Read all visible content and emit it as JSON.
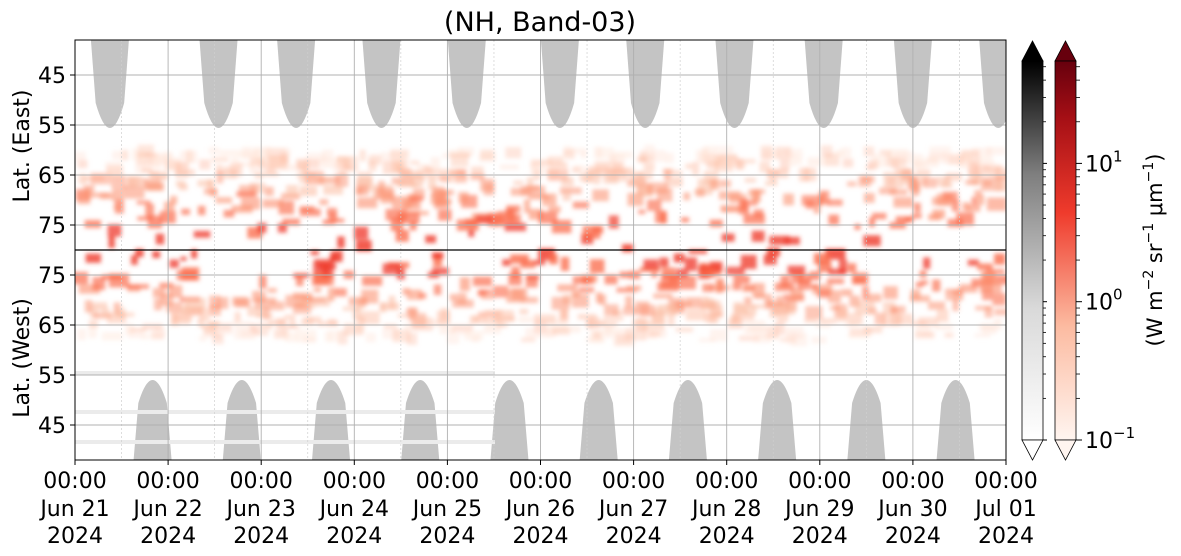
{
  "chart_data": {
    "type": "heatmap",
    "title": "(NH, Band-03)",
    "panels": [
      {
        "name": "east",
        "ylabel": "Lat. (East)",
        "yticks": [
          45,
          55,
          65,
          75
        ],
        "ylim": [
          38,
          80
        ]
      },
      {
        "name": "west",
        "ylabel": "Lat. (West)",
        "yticks": [
          75,
          65,
          55,
          45
        ],
        "ylim": [
          80,
          38
        ]
      }
    ],
    "x_ticks": [
      {
        "time": "00:00",
        "day": "Jun 21",
        "year": "2024"
      },
      {
        "time": "00:00",
        "day": "Jun 22",
        "year": "2024"
      },
      {
        "time": "00:00",
        "day": "Jun 23",
        "year": "2024"
      },
      {
        "time": "00:00",
        "day": "Jun 24",
        "year": "2024"
      },
      {
        "time": "00:00",
        "day": "Jun 25",
        "year": "2024"
      },
      {
        "time": "00:00",
        "day": "Jun 26",
        "year": "2024"
      },
      {
        "time": "00:00",
        "day": "Jun 27",
        "year": "2024"
      },
      {
        "time": "00:00",
        "day": "Jun 28",
        "year": "2024"
      },
      {
        "time": "00:00",
        "day": "Jun 29",
        "year": "2024"
      },
      {
        "time": "00:00",
        "day": "Jun 30",
        "year": "2024"
      },
      {
        "time": "00:00",
        "day": "Jul 01",
        "year": "2024"
      }
    ],
    "x_range": [
      "2024-06-21T00:00",
      "2024-07-01T00:00"
    ],
    "grid": true,
    "colorbars": [
      {
        "name": "grayscale",
        "colormap": "Greys",
        "scale": "log",
        "extend": "both"
      },
      {
        "name": "reds",
        "colormap": "Reds",
        "scale": "log",
        "extend": "both",
        "label": "(W m$^{-2}$ sr$^{-1}$ μm$^{-1}$)",
        "ticks": [
          {
            "base": "10",
            "exp": "−1",
            "value": 0.1
          },
          {
            "base": "10",
            "exp": "0",
            "value": 1
          },
          {
            "base": "10",
            "exp": "1",
            "value": 10
          }
        ]
      }
    ],
    "colorbar_label": {
      "prefix": "(W m",
      "exp1": "−2",
      "mid": " sr",
      "exp2": "−1",
      "mu": " μm",
      "exp3": "−1",
      "suffix": ")"
    },
    "gray_lobes_east": [
      {
        "center": "2024-06-21T09:00",
        "peak_lat": 59
      },
      {
        "center": "2024-06-22T13:00",
        "peak_lat": 59
      },
      {
        "center": "2024-06-23T09:00",
        "peak_lat": 59
      },
      {
        "center": "2024-06-24T07:00",
        "peak_lat": 59
      },
      {
        "center": "2024-06-25T05:00",
        "peak_lat": 59
      },
      {
        "center": "2024-06-26T05:00",
        "peak_lat": 59
      },
      {
        "center": "2024-06-27T03:00",
        "peak_lat": 59
      },
      {
        "center": "2024-06-28T02:00",
        "peak_lat": 59
      },
      {
        "center": "2024-06-29T01:00",
        "peak_lat": 59
      },
      {
        "center": "2024-06-30T00:00",
        "peak_lat": 59
      },
      {
        "center": "2024-06-30T22:00",
        "peak_lat": 59
      }
    ],
    "gray_lobes_west": [
      {
        "center": "2024-06-21T20:00",
        "peak_lat": 57
      },
      {
        "center": "2024-06-22T19:00",
        "peak_lat": 57
      },
      {
        "center": "2024-06-23T18:00",
        "peak_lat": 57
      },
      {
        "center": "2024-06-24T17:00",
        "peak_lat": 57
      },
      {
        "center": "2024-06-25T16:00",
        "peak_lat": 57
      },
      {
        "center": "2024-06-26T15:00",
        "peak_lat": 57
      },
      {
        "center": "2024-06-27T14:00",
        "peak_lat": 57
      },
      {
        "center": "2024-06-28T13:00",
        "peak_lat": 57
      },
      {
        "center": "2024-06-29T12:00",
        "peak_lat": 57
      },
      {
        "center": "2024-06-30T11:00",
        "peak_lat": 57
      },
      {
        "center": "2024-07-01T10:00",
        "peak_lat": 57
      }
    ],
    "emission_band_east": {
      "lat_min": 60,
      "lat_max": 80
    },
    "emission_band_west": {
      "lat_min": 62,
      "lat_max": 80
    },
    "boundary_line_lat": 80
  }
}
